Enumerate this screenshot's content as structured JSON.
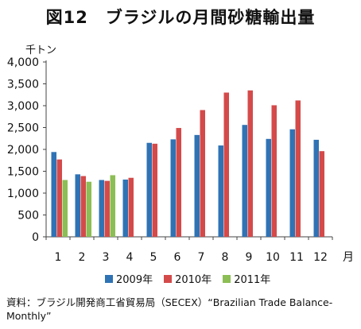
{
  "title": "図12　ブラジルの月間砂糖輸出量",
  "source": "資料：ブラジル開発商工省貿易局（SECEX）“Brazilian Trade Balance-Monthly”",
  "chart_data": {
    "type": "bar",
    "ylabel": "千トン",
    "xlabel": "月",
    "ylim": [
      0,
      4000
    ],
    "yticks": [
      "0",
      "500",
      "1,000",
      "1,500",
      "2,000",
      "2,500",
      "3,000",
      "3,500",
      "4,000"
    ],
    "categories": [
      "1",
      "2",
      "3",
      "4",
      "5",
      "6",
      "7",
      "8",
      "9",
      "10",
      "11",
      "12"
    ],
    "series": [
      {
        "name": "2009年",
        "color": "#2f73b4",
        "values": [
          1940,
          1430,
          1300,
          1310,
          2150,
          2230,
          2330,
          2090,
          2560,
          2240,
          2460,
          2220
        ]
      },
      {
        "name": "2010年",
        "color": "#d44a4a",
        "values": [
          1770,
          1390,
          1280,
          1350,
          2130,
          2490,
          2900,
          3300,
          3350,
          3010,
          3120,
          1960
        ]
      },
      {
        "name": "2011年",
        "color": "#8cbe55",
        "values": [
          1300,
          1260,
          1410,
          null,
          null,
          null,
          null,
          null,
          null,
          null,
          null,
          null
        ]
      }
    ],
    "legend": "bottom"
  }
}
